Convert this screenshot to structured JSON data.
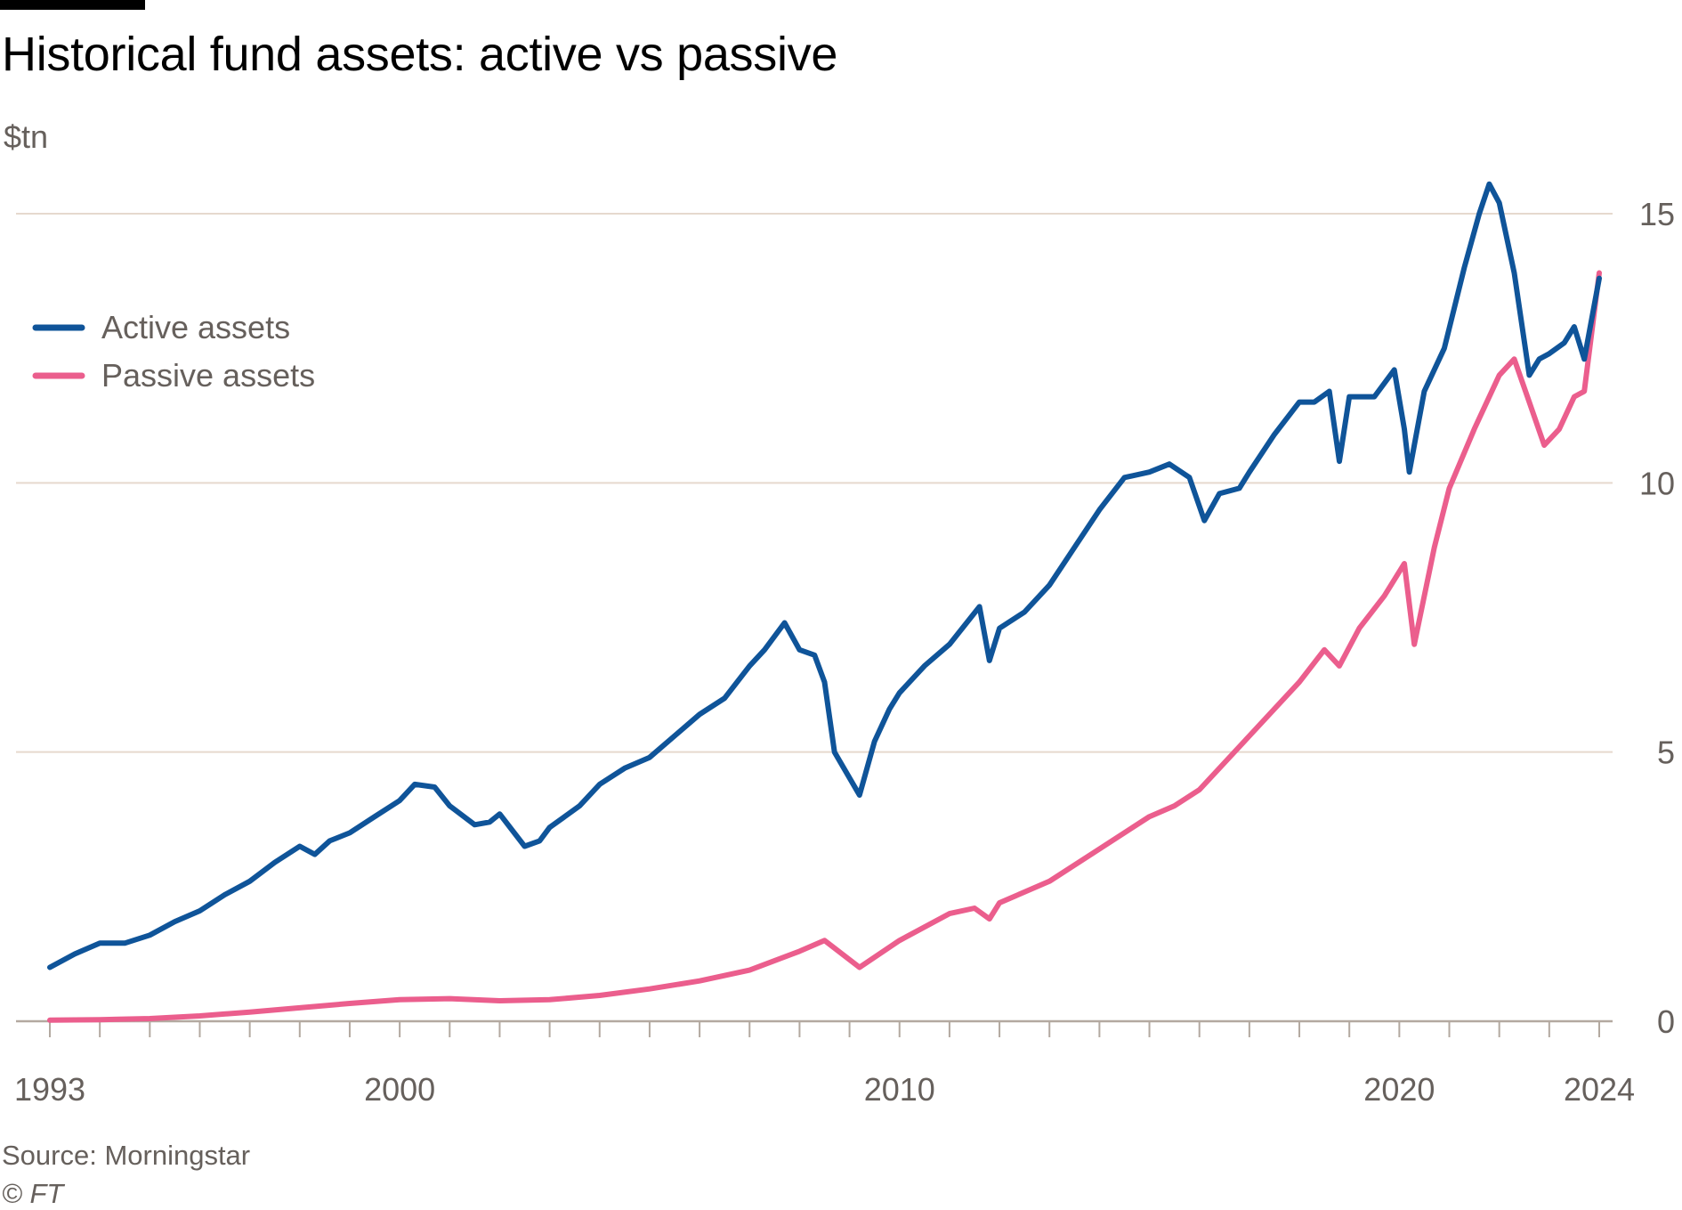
{
  "title": "Historical fund assets: active vs passive",
  "unit_label": "$tn",
  "source": "Source: Morningstar",
  "copyright": "© FT",
  "colors": {
    "active": "#0f5499",
    "passive": "#eb5e8d",
    "grid": "#e6d9ce",
    "axis": "#b3a9a0"
  },
  "chart_data": {
    "type": "line",
    "title": "Historical fund assets: active vs passive",
    "xlabel": "",
    "ylabel": "$tn",
    "xlim": [
      1993,
      2024
    ],
    "ylim": [
      0,
      15
    ],
    "y_ticks": [
      0,
      5,
      10,
      15
    ],
    "x_tick_labels": [
      {
        "value": 1993,
        "label": "1993"
      },
      {
        "value": 2000,
        "label": "2000"
      },
      {
        "value": 2010,
        "label": "2010"
      },
      {
        "value": 2020,
        "label": "2020"
      },
      {
        "value": 2024,
        "label": "2024"
      }
    ],
    "legend_position": "top-left",
    "series": [
      {
        "name": "Active assets",
        "color": "#0f5499",
        "x": [
          1993,
          1993.5,
          1994,
          1994.5,
          1995,
          1995.5,
          1996,
          1996.5,
          1997,
          1997.5,
          1998,
          1998.3,
          1998.6,
          1999,
          1999.5,
          2000,
          2000.3,
          2000.7,
          2001,
          2001.5,
          2001.8,
          2002,
          2002.5,
          2002.8,
          2003,
          2003.3,
          2003.6,
          2004,
          2004.5,
          2005,
          2005.5,
          2006,
          2006.5,
          2007,
          2007.3,
          2007.7,
          2008,
          2008.3,
          2008.5,
          2008.7,
          2009.2,
          2009.5,
          2009.8,
          2010,
          2010.5,
          2011,
          2011.6,
          2011.8,
          2012,
          2012.5,
          2013,
          2013.5,
          2014,
          2014.5,
          2015,
          2015.4,
          2015.8,
          2016.1,
          2016.4,
          2016.8,
          2017,
          2017.5,
          2018,
          2018.3,
          2018.6,
          2018.8,
          2019,
          2019.5,
          2019.9,
          2020.1,
          2020.2,
          2020.5,
          2020.9,
          2021.3,
          2021.6,
          2021.8,
          2022,
          2022.3,
          2022.6,
          2022.8,
          2023,
          2023.3,
          2023.5,
          2023.7,
          2024
        ],
        "values": [
          1.0,
          1.25,
          1.45,
          1.45,
          1.6,
          1.85,
          2.05,
          2.35,
          2.6,
          2.95,
          3.25,
          3.1,
          3.35,
          3.5,
          3.8,
          4.1,
          4.4,
          4.35,
          4.0,
          3.65,
          3.7,
          3.85,
          3.25,
          3.35,
          3.6,
          3.8,
          4.0,
          4.4,
          4.7,
          4.9,
          5.3,
          5.7,
          6.0,
          6.6,
          6.9,
          7.4,
          6.9,
          6.8,
          6.3,
          5.0,
          4.2,
          5.2,
          5.8,
          6.1,
          6.6,
          7.0,
          7.7,
          6.7,
          7.3,
          7.6,
          8.1,
          8.8,
          9.5,
          10.1,
          10.2,
          10.35,
          10.1,
          9.3,
          9.8,
          9.9,
          10.2,
          10.9,
          11.5,
          11.5,
          11.7,
          10.4,
          11.6,
          11.6,
          12.1,
          11.0,
          10.2,
          11.7,
          12.5,
          14.0,
          15.0,
          15.55,
          15.2,
          13.9,
          12.0,
          12.3,
          12.4,
          12.6,
          12.9,
          12.3,
          13.8
        ]
      },
      {
        "name": "Passive assets",
        "color": "#eb5e8d",
        "x": [
          1993,
          1994,
          1995,
          1996,
          1997,
          1998,
          1999,
          2000,
          2001,
          2002,
          2003,
          2004,
          2005,
          2006,
          2007,
          2008,
          2008.5,
          2009.2,
          2010,
          2011,
          2011.5,
          2011.8,
          2012,
          2013,
          2014,
          2015,
          2015.5,
          2016,
          2017,
          2018,
          2018.5,
          2018.8,
          2019.2,
          2019.7,
          2020.1,
          2020.3,
          2020.7,
          2021,
          2021.5,
          2022,
          2022.3,
          2022.6,
          2022.9,
          2023.2,
          2023.5,
          2023.7,
          2024
        ],
        "values": [
          0.02,
          0.03,
          0.05,
          0.1,
          0.17,
          0.25,
          0.33,
          0.4,
          0.42,
          0.38,
          0.4,
          0.48,
          0.6,
          0.75,
          0.95,
          1.3,
          1.5,
          1.0,
          1.5,
          2.0,
          2.1,
          1.9,
          2.2,
          2.6,
          3.2,
          3.8,
          4.0,
          4.3,
          5.3,
          6.3,
          6.9,
          6.6,
          7.3,
          7.9,
          8.5,
          7.0,
          8.8,
          9.9,
          11.0,
          12.0,
          12.3,
          11.5,
          10.7,
          11.0,
          11.6,
          11.7,
          13.9
        ]
      }
    ]
  }
}
